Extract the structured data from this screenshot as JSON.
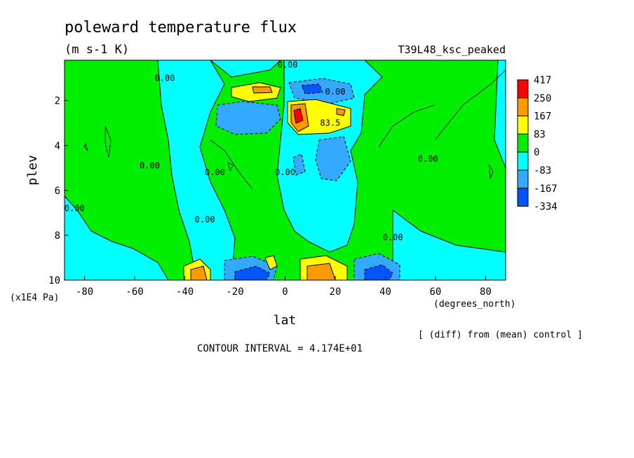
{
  "chart_data": {
    "type": "contour",
    "title": "poleward temperature flux",
    "units": "(m s-1 K)",
    "run_label": "T39L48_ksc_peaked",
    "xlabel": "lat",
    "x_units": "(degrees_north)",
    "ylabel": "plev",
    "y_units": "(x1E4 Pa)",
    "subtitle": "[ (diff) from (mean) control ]",
    "contour_interval_text": "CONTOUR INTERVAL = 4.174E+01",
    "xlim": [
      -88,
      88
    ],
    "ylim": [
      10,
      0.2
    ],
    "x_ticks": [
      -80,
      -60,
      -40,
      -20,
      0,
      20,
      40,
      60,
      80
    ],
    "x_tick_labels": [
      "-80",
      "-60",
      "-40",
      "-20",
      "0",
      "20",
      "40",
      "60",
      "80"
    ],
    "y_ticks": [
      2,
      4,
      6,
      8,
      10
    ],
    "y_tick_labels": [
      "2",
      "4",
      "6",
      "8",
      "10"
    ],
    "colorbar": {
      "levels": [
        "417",
        "250",
        "167",
        "83",
        "0",
        "-83",
        "-167",
        "-334"
      ],
      "colors": [
        "#ff0000",
        "#ff9900",
        "#ffff00",
        "#00ee00",
        "#00ffff",
        "#33aaff",
        "#0055ff"
      ]
    },
    "contour_labels": [
      {
        "text": "0.00",
        "x": 1,
        "y": 0.4
      },
      {
        "text": "0.00",
        "x": -48,
        "y": 1.0
      },
      {
        "text": "0.00",
        "x": 20,
        "y": 1.6
      },
      {
        "text": "83.5",
        "x": 18,
        "y": 3.0
      },
      {
        "text": "0.00",
        "x": -54,
        "y": 4.9
      },
      {
        "text": "0.00",
        "x": -28,
        "y": 5.2
      },
      {
        "text": "0.00",
        "x": 0,
        "y": 5.2
      },
      {
        "text": "0.00",
        "x": 57,
        "y": 4.6
      },
      {
        "text": "0.00",
        "x": -84,
        "y": 6.8
      },
      {
        "text": "0.00",
        "x": -32,
        "y": 7.3
      },
      {
        "text": "0.00",
        "x": 43,
        "y": 8.1
      }
    ]
  }
}
